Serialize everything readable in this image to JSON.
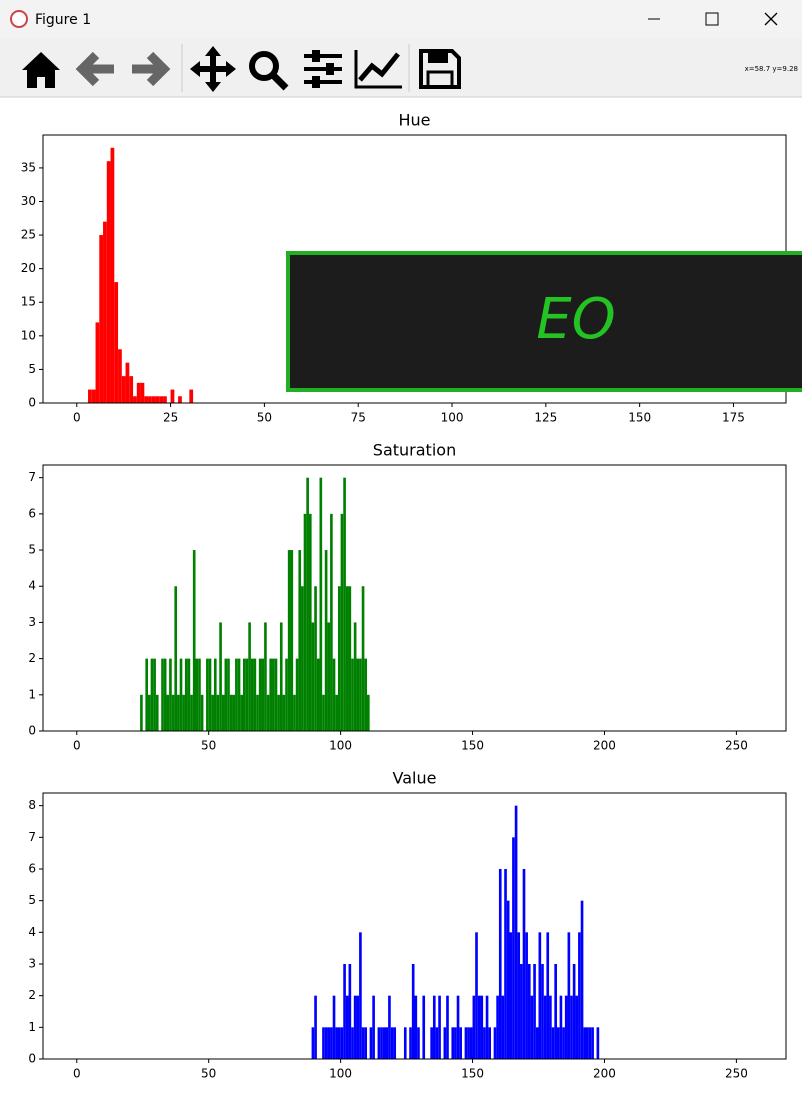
{
  "window": {
    "title": "Figure 1",
    "coords": "x=58.7 y=9.28"
  },
  "overlay": {
    "text": "EO"
  },
  "chart_data": [
    {
      "type": "histogram",
      "title": "Hue",
      "color": "#ff0000",
      "bins": [
        3,
        4,
        5,
        6,
        7,
        8,
        9,
        10,
        11,
        12,
        13,
        14,
        15,
        16,
        17,
        18,
        19,
        20,
        21,
        22,
        23,
        24,
        25,
        26,
        27,
        28,
        29,
        30,
        31
      ],
      "values": [
        2,
        2,
        12,
        25,
        27,
        36,
        38,
        18,
        8,
        4,
        6,
        4,
        1,
        3,
        3,
        1,
        1,
        1,
        1,
        1,
        1,
        0,
        2,
        0,
        1,
        0,
        0,
        2
      ],
      "xlim": [
        -9,
        189
      ],
      "ylim": [
        0,
        39.9
      ],
      "xticks": [
        0,
        25,
        50,
        75,
        100,
        125,
        150,
        175
      ],
      "yticks": [
        0,
        5,
        10,
        15,
        20,
        25,
        30,
        35
      ]
    },
    {
      "type": "histogram",
      "title": "Saturation",
      "color": "#008000",
      "bins": [
        24,
        25,
        26,
        27,
        28,
        29,
        30,
        31,
        32,
        33,
        34,
        35,
        36,
        37,
        38,
        39,
        40,
        41,
        42,
        43,
        44,
        45,
        46,
        47,
        48,
        49,
        50,
        51,
        52,
        53,
        54,
        55,
        56,
        57,
        58,
        59,
        60,
        61,
        62,
        63,
        64,
        65,
        66,
        67,
        68,
        69,
        70,
        71,
        72,
        73,
        74,
        75,
        76,
        77,
        78,
        79,
        80,
        81,
        82,
        83,
        84,
        85,
        86,
        87,
        88,
        89,
        90,
        91,
        92,
        93,
        94,
        95,
        96,
        97,
        98,
        99,
        100,
        101,
        102,
        103,
        104,
        105,
        106,
        107,
        108,
        109,
        110,
        111
      ],
      "values": [
        1,
        0,
        2,
        1,
        2,
        2,
        1,
        0,
        2,
        2,
        1,
        2,
        1,
        4,
        1,
        2,
        1,
        2,
        2,
        1,
        5,
        2,
        2,
        1,
        0,
        2,
        2,
        1,
        2,
        1,
        3,
        1,
        2,
        2,
        1,
        1,
        2,
        2,
        1,
        2,
        2,
        3,
        2,
        2,
        1,
        2,
        2,
        3,
        1,
        2,
        2,
        2,
        1,
        3,
        1,
        2,
        5,
        5,
        1,
        2,
        5,
        4,
        6,
        7,
        6,
        3,
        4,
        2,
        7,
        1,
        5,
        3,
        6,
        2,
        1,
        4,
        6,
        7,
        4,
        4,
        2,
        3,
        2,
        2,
        4,
        2,
        1
      ],
      "xlim": [
        -12.8,
        268.8
      ],
      "ylim": [
        0,
        7.35
      ],
      "xticks": [
        0,
        50,
        100,
        150,
        200,
        250
      ],
      "yticks": [
        0,
        1,
        2,
        3,
        4,
        5,
        6,
        7
      ]
    },
    {
      "type": "histogram",
      "title": "Value",
      "color": "#0000ff",
      "bins": [
        89,
        90,
        91,
        92,
        93,
        94,
        95,
        96,
        97,
        98,
        99,
        100,
        101,
        102,
        103,
        104,
        105,
        106,
        107,
        108,
        109,
        110,
        111,
        112,
        113,
        114,
        115,
        116,
        117,
        118,
        119,
        120,
        121,
        122,
        123,
        124,
        125,
        126,
        127,
        128,
        129,
        130,
        131,
        132,
        133,
        134,
        135,
        136,
        137,
        138,
        139,
        140,
        141,
        142,
        143,
        144,
        145,
        146,
        147,
        148,
        149,
        150,
        151,
        152,
        153,
        154,
        155,
        156,
        157,
        158,
        159,
        160,
        161,
        162,
        163,
        164,
        165,
        166,
        167,
        168,
        169,
        170,
        171,
        172,
        173,
        174,
        175,
        176,
        177,
        178,
        179,
        180,
        181,
        182,
        183,
        184,
        185,
        186,
        187,
        188,
        189,
        190,
        191,
        192,
        193,
        194,
        195,
        196,
        197,
        198
      ],
      "values": [
        1,
        2,
        0,
        0,
        1,
        1,
        1,
        1,
        2,
        1,
        1,
        1,
        3,
        2,
        3,
        1,
        2,
        2,
        4,
        1,
        1,
        0,
        1,
        2,
        0,
        1,
        1,
        1,
        1,
        2,
        1,
        1,
        0,
        0,
        0,
        1,
        0,
        1,
        3,
        2,
        1,
        0,
        2,
        0,
        0,
        1,
        2,
        1,
        2,
        0,
        1,
        2,
        0,
        1,
        1,
        2,
        1,
        0,
        1,
        1,
        1,
        2,
        4,
        2,
        2,
        1,
        2,
        1,
        0,
        1,
        2,
        6,
        2,
        6,
        5,
        4,
        7,
        8,
        4,
        3,
        6,
        4,
        3,
        2,
        3,
        1,
        4,
        3,
        2,
        4,
        2,
        1,
        3,
        1,
        2,
        1,
        2,
        4,
        2,
        3,
        2,
        4,
        5,
        1,
        1,
        1,
        1,
        0,
        1
      ],
      "xlim": [
        -12.8,
        268.8
      ],
      "ylim": [
        0,
        8.4
      ],
      "xticks": [
        0,
        50,
        100,
        150,
        200,
        250
      ],
      "yticks": [
        0,
        1,
        2,
        3,
        4,
        5,
        6,
        7,
        8
      ]
    }
  ]
}
